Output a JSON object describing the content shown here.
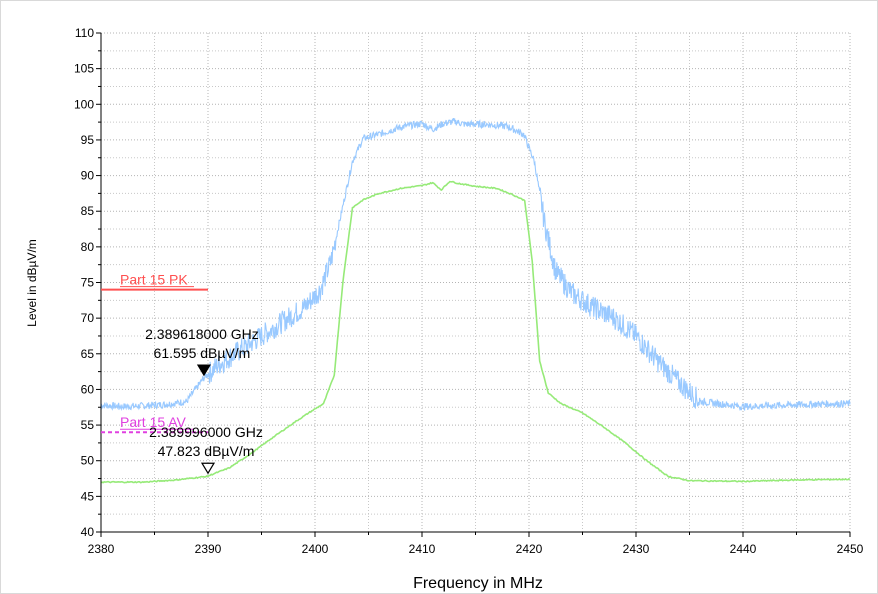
{
  "chart_data": {
    "type": "line",
    "xlabel": "Frequency in MHz",
    "ylabel": "Level in dBµV/m",
    "xlim": [
      2380,
      2450
    ],
    "ylim": [
      40,
      110
    ],
    "x_ticks": [
      "2380",
      "2390",
      "2400",
      "2410",
      "2420",
      "2430",
      "2440",
      "2450"
    ],
    "y_ticks": [
      "40",
      "45",
      "50",
      "55",
      "60",
      "65",
      "70",
      "75",
      "80",
      "85",
      "90",
      "95",
      "100",
      "105",
      "110"
    ],
    "grid": true,
    "series": [
      {
        "color": "#99c9ff",
        "x": [
          2380,
          2382,
          2384,
          2386,
          2388,
          2389.6,
          2391,
          2393,
          2395,
          2397,
          2399,
          2400.5,
          2401.5,
          2402.5,
          2403.5,
          2404.5,
          2406,
          2408,
          2410,
          2411,
          2412,
          2413,
          2414,
          2416,
          2418,
          2419.5,
          2420.5,
          2421.5,
          2422.5,
          2424,
          2426,
          2428,
          2430,
          2432,
          2434,
          2436,
          2440,
          2444,
          2448,
          2450
        ],
        "y": [
          57.8,
          57.6,
          57.7,
          57.9,
          58.3,
          61.6,
          63.5,
          65.5,
          67.5,
          69.5,
          71.5,
          74,
          78,
          85,
          92,
          95.2,
          95.8,
          96.8,
          97.3,
          96.5,
          97.3,
          97.6,
          97.2,
          97.2,
          96.9,
          95.8,
          92,
          83,
          76.5,
          73.5,
          71.5,
          70,
          67.5,
          64,
          61,
          58.3,
          57.6,
          57.8,
          58,
          58
        ]
      },
      {
        "color": "#96ea78",
        "x": [
          2380,
          2384,
          2387,
          2389.9,
          2392,
          2394,
          2396,
          2398,
          2399.5,
          2400.8,
          2401.8,
          2402.6,
          2403.5,
          2404.5,
          2406,
          2408,
          2410,
          2411,
          2411.8,
          2412.6,
          2413.4,
          2415,
          2417,
          2418.5,
          2419.6,
          2420.3,
          2421,
          2421.8,
          2423,
          2425,
          2427,
          2429,
          2431,
          2433,
          2435,
          2440,
          2445,
          2450
        ],
        "y": [
          47,
          47,
          47.3,
          47.8,
          49,
          51,
          53.2,
          55.3,
          56.8,
          58,
          62,
          75,
          85.5,
          86.6,
          87.5,
          88.2,
          88.6,
          89,
          88,
          89.2,
          88.9,
          88.5,
          88.2,
          87.3,
          86.5,
          78,
          64,
          59.5,
          58,
          56.7,
          54.7,
          52.5,
          50,
          47.8,
          47.2,
          47.1,
          47.3,
          47.4
        ]
      }
    ],
    "limit_lines": [
      {
        "label": "Part 15 PK",
        "value": 74,
        "x_end": 2390,
        "color": "#ff5050",
        "dashed": false
      },
      {
        "label": "Part 15 AV",
        "value": 54,
        "x_end": 2390,
        "color": "#e040e0",
        "dashed": true
      }
    ],
    "markers": [
      {
        "freq_text": "2.389618000 GHz",
        "level_text": "61.595 dBµV/m",
        "x": 2389.62,
        "y": 61.595,
        "filled": true
      },
      {
        "freq_text": "2.389996000 GHz",
        "level_text": "47.823 dBµV/m",
        "x": 2390.0,
        "y": 47.823,
        "filled": false
      }
    ]
  }
}
